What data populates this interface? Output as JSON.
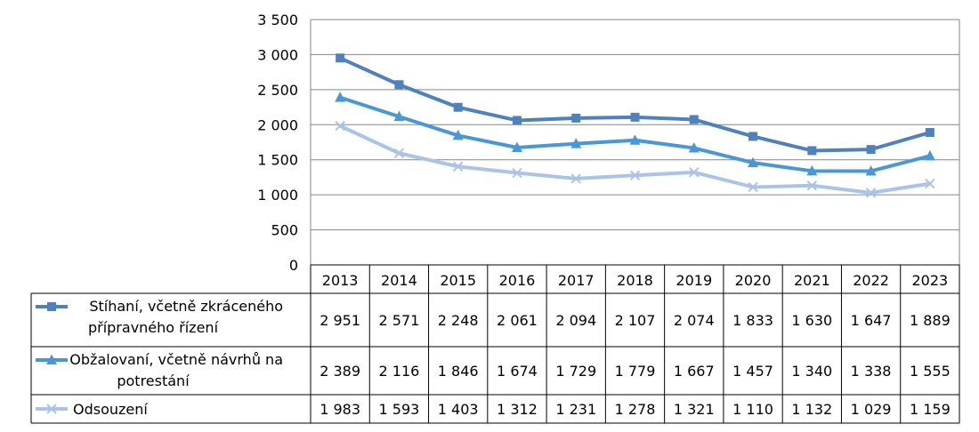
{
  "chart_data": {
    "type": "line",
    "categories": [
      "2013",
      "2014",
      "2015",
      "2016",
      "2017",
      "2018",
      "2019",
      "2020",
      "2021",
      "2022",
      "2023"
    ],
    "ylim": [
      0,
      3500
    ],
    "yticks": [
      0,
      500,
      1000,
      1500,
      2000,
      2500,
      3000,
      3500
    ],
    "ytick_labels": [
      "0",
      "500",
      "1 000",
      "1 500",
      "2 000",
      "2 500",
      "3 000",
      "3 500"
    ],
    "grid": true,
    "legend": "data-table-below",
    "series": [
      {
        "name_lines": [
          "Stíhaní, včetně zkráceného",
          "přípravného řízení"
        ],
        "color": "#4f81bd",
        "marker": "square",
        "values": [
          2951,
          2571,
          2248,
          2061,
          2094,
          2107,
          2074,
          1833,
          1630,
          1647,
          1889
        ],
        "labels": [
          "2 951",
          "2 571",
          "2 248",
          "2 061",
          "2 094",
          "2 107",
          "2 074",
          "1 833",
          "1 630",
          "1 647",
          "1 889"
        ]
      },
      {
        "name_lines": [
          "Obžalovaní, včetně návrhů na",
          "potrestání"
        ],
        "color": "#4a97d6",
        "marker": "triangle",
        "values": [
          2389,
          2116,
          1846,
          1674,
          1729,
          1779,
          1667,
          1457,
          1340,
          1338,
          1555
        ],
        "labels": [
          "2 389",
          "2 116",
          "1 846",
          "1 674",
          "1 729",
          "1 779",
          "1 667",
          "1 457",
          "1 340",
          "1 338",
          "1 555"
        ]
      },
      {
        "name_lines": [
          "Odsouzení"
        ],
        "color": "#a9c4e6",
        "marker": "x",
        "values": [
          1983,
          1593,
          1403,
          1312,
          1231,
          1278,
          1321,
          1110,
          1132,
          1029,
          1159
        ],
        "labels": [
          "1 983",
          "1 593",
          "1 403",
          "1 312",
          "1 231",
          "1 278",
          "1 321",
          "1 110",
          "1 132",
          "1 029",
          "1 159"
        ]
      }
    ]
  }
}
